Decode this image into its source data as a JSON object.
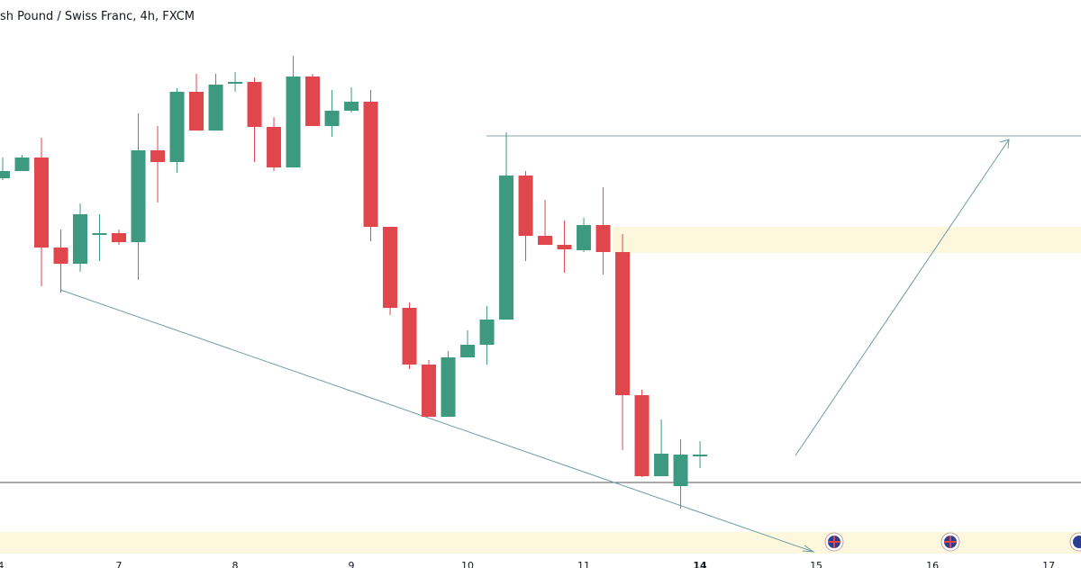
{
  "chart_data": {
    "type": "candlestick",
    "title": "sh Pound / Swiss Franc, 4h, FXCM",
    "x": [
      0,
      1,
      2,
      3,
      4,
      5,
      6,
      7,
      8,
      9,
      10,
      11,
      12,
      13,
      14,
      15,
      16,
      17,
      18,
      19,
      20,
      21,
      22,
      23,
      24,
      25,
      26,
      27,
      28,
      29,
      30,
      31,
      32,
      33,
      34,
      35,
      36
    ],
    "open": [
      433,
      441,
      456,
      356,
      338,
      371,
      372,
      362,
      464,
      451,
      529,
      486,
      538,
      540,
      490,
      445,
      546,
      491,
      508,
      518,
      379,
      289,
      226,
      168,
      234,
      248,
      276,
      436,
      369,
      359,
      353,
      381,
      351,
      192,
      102,
      91,
      126
    ],
    "high": [
      456,
      459,
      478,
      376,
      405,
      393,
      376,
      505,
      491,
      533,
      549,
      549,
      551,
      545,
      501,
      569,
      549,
      531,
      534,
      531,
      379,
      295,
      231,
      241,
      264,
      291,
      484,
      441,
      409,
      386,
      389,
      423,
      371,
      198,
      165,
      143,
      141
    ],
    "low": [
      431,
      441,
      313,
      306,
      329,
      341,
      359,
      320,
      406,
      439,
      486,
      486,
      529,
      451,
      441,
      445,
      491,
      479,
      506,
      363,
      281,
      221,
      168,
      168,
      234,
      226,
      276,
      341,
      359,
      328,
      351,
      326,
      131,
      101,
      102,
      66,
      111
    ],
    "close": [
      441,
      456,
      356,
      338,
      393,
      372,
      362,
      464,
      451,
      529,
      486,
      537,
      540,
      490,
      445,
      546,
      491,
      508,
      518,
      379,
      289,
      226,
      168,
      234,
      248,
      276,
      436,
      369,
      359,
      354,
      381,
      351,
      192,
      102,
      127,
      126,
      126
    ],
    "up_color": "#3d9a80",
    "down_color": "#e0474c",
    "xlim": [
      -0.14,
      55.67
    ],
    "ylim": [
      0,
      631
    ],
    "xticks": [
      {
        "value": -0.1,
        "label": "4"
      },
      {
        "value": 6,
        "label": "7"
      },
      {
        "value": 12,
        "label": "8"
      },
      {
        "value": 18,
        "label": "9"
      },
      {
        "value": 24,
        "label": "10"
      },
      {
        "value": 30,
        "label": "11"
      },
      {
        "value": 36,
        "label": "14"
      },
      {
        "value": 42,
        "label": "15"
      },
      {
        "value": 48,
        "label": "16"
      },
      {
        "value": 54,
        "label": "17"
      }
    ]
  }
}
